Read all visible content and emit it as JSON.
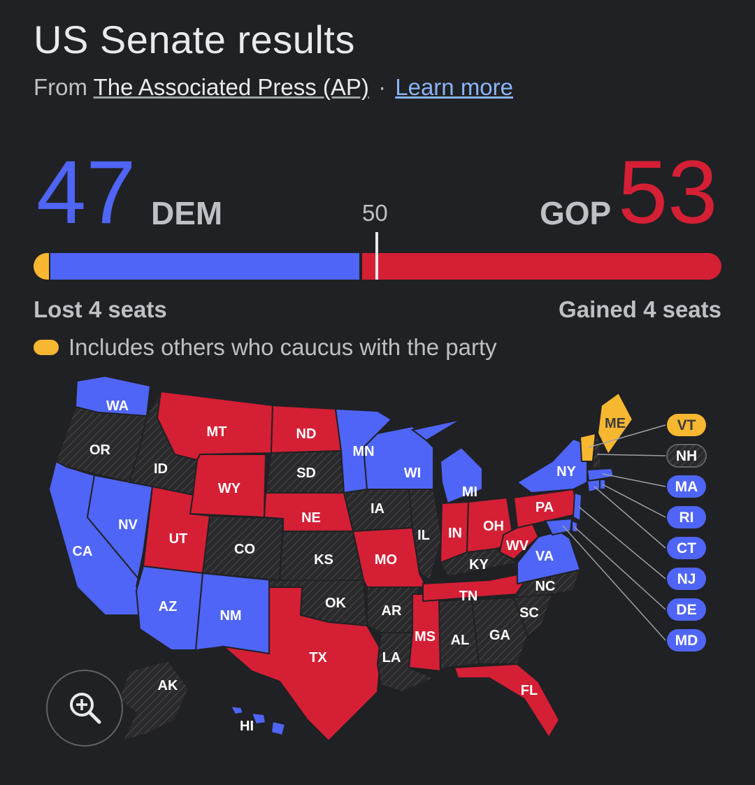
{
  "title": "US Senate results",
  "source": {
    "prefix": "From",
    "outlet": "The Associated Press (AP)",
    "separator": "·",
    "learn_more": "Learn more"
  },
  "dem": {
    "seats": "47",
    "label": "DEM",
    "change": "Lost 4 seats"
  },
  "gop": {
    "seats": "53",
    "label": "GOP",
    "change": "Gained 4 seats"
  },
  "majority": "50",
  "legend": {
    "others": "Includes others who caucus with the party"
  },
  "colors": {
    "dem": "#4f65f8",
    "gop": "#d51f35",
    "other": "#f7b731",
    "no_race": "#2a2a2c",
    "background": "#202124"
  },
  "map": {
    "states": [
      {
        "code": "WA",
        "status": "dem"
      },
      {
        "code": "OR",
        "status": "none"
      },
      {
        "code": "CA",
        "status": "dem"
      },
      {
        "code": "NV",
        "status": "dem"
      },
      {
        "code": "ID",
        "status": "none"
      },
      {
        "code": "MT",
        "status": "gop"
      },
      {
        "code": "WY",
        "status": "gop"
      },
      {
        "code": "UT",
        "status": "gop"
      },
      {
        "code": "AZ",
        "status": "dem"
      },
      {
        "code": "CO",
        "status": "none"
      },
      {
        "code": "NM",
        "status": "dem"
      },
      {
        "code": "ND",
        "status": "gop"
      },
      {
        "code": "SD",
        "status": "none"
      },
      {
        "code": "NE",
        "status": "gop"
      },
      {
        "code": "KS",
        "status": "none"
      },
      {
        "code": "OK",
        "status": "none"
      },
      {
        "code": "TX",
        "status": "gop"
      },
      {
        "code": "MN",
        "status": "dem"
      },
      {
        "code": "IA",
        "status": "none"
      },
      {
        "code": "MO",
        "status": "gop"
      },
      {
        "code": "AR",
        "status": "none"
      },
      {
        "code": "LA",
        "status": "none"
      },
      {
        "code": "WI",
        "status": "dem"
      },
      {
        "code": "IL",
        "status": "none"
      },
      {
        "code": "MS",
        "status": "gop"
      },
      {
        "code": "MI",
        "status": "dem"
      },
      {
        "code": "IN",
        "status": "gop"
      },
      {
        "code": "KY",
        "status": "none"
      },
      {
        "code": "TN",
        "status": "gop"
      },
      {
        "code": "AL",
        "status": "none"
      },
      {
        "code": "OH",
        "status": "gop"
      },
      {
        "code": "WV",
        "status": "gop"
      },
      {
        "code": "GA",
        "status": "none"
      },
      {
        "code": "FL",
        "status": "gop"
      },
      {
        "code": "SC",
        "status": "none"
      },
      {
        "code": "NC",
        "status": "none"
      },
      {
        "code": "VA",
        "status": "dem"
      },
      {
        "code": "PA",
        "status": "gop"
      },
      {
        "code": "NY",
        "status": "dem"
      },
      {
        "code": "ME",
        "status": "other"
      },
      {
        "code": "AK",
        "status": "none"
      },
      {
        "code": "HI",
        "status": "dem"
      }
    ],
    "small_states": [
      {
        "code": "VT",
        "status": "other"
      },
      {
        "code": "NH",
        "status": "none"
      },
      {
        "code": "MA",
        "status": "dem"
      },
      {
        "code": "RI",
        "status": "dem"
      },
      {
        "code": "CT",
        "status": "dem"
      },
      {
        "code": "NJ",
        "status": "dem"
      },
      {
        "code": "DE",
        "status": "dem"
      },
      {
        "code": "MD",
        "status": "dem"
      }
    ]
  },
  "zoom_icon": "zoom-in-icon"
}
